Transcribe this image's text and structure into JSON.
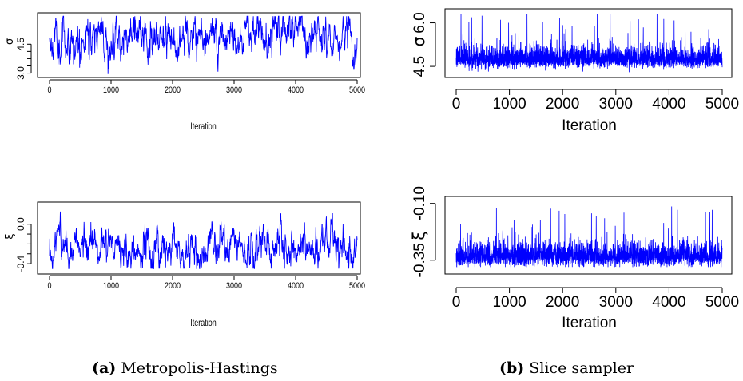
{
  "captions": [
    {
      "label": "(a)",
      "text": "Metropolis-Hastings"
    },
    {
      "label": "(b)",
      "text": "Slice sampler"
    }
  ],
  "series_color": "#0000ff",
  "chart_data": [
    {
      "type": "line",
      "panel": "a-top",
      "xlabel": "Iteration",
      "ylabel": "σ",
      "xlim": [
        0,
        5000
      ],
      "ylim": [
        2.9,
        6.0
      ],
      "xticks": [
        "0",
        "1000",
        "2000",
        "3000",
        "4000",
        "5000"
      ],
      "yticks": [
        "3.0",
        "4.5"
      ],
      "ytick_values": [
        3.0,
        4.5
      ],
      "series": [
        {
          "x_range": [
            0,
            5000
          ],
          "n_points": 5000,
          "center": 4.9,
          "spread": 0.65,
          "min": 2.95,
          "max": 5.95,
          "values_summary": "MCMC trace; values roughly between 3.0 and 5.9"
        }
      ]
    },
    {
      "type": "line",
      "panel": "b-top",
      "xlabel": "Iteration",
      "ylabel": "σ",
      "xlim": [
        0,
        5000
      ],
      "ylim": [
        4.2,
        6.4
      ],
      "xticks": [
        "0",
        "1000",
        "2000",
        "3000",
        "4000",
        "5000"
      ],
      "yticks": [
        "4.5",
        "6.0"
      ],
      "ytick_values": [
        4.5,
        6.0
      ],
      "series": [
        {
          "x_range": [
            0,
            5000
          ],
          "n_points": 5000,
          "center": 4.85,
          "spread": 0.35,
          "min": 4.3,
          "max": 6.3,
          "values_summary": "dense MCMC trace; values roughly between 4.3 and 6.3"
        }
      ]
    },
    {
      "type": "line",
      "panel": "a-bottom",
      "xlabel": "Iteration",
      "ylabel": "ξ",
      "xlim": [
        0,
        5000
      ],
      "ylim": [
        -0.48,
        0.2
      ],
      "xticks": [
        "0",
        "1000",
        "2000",
        "3000",
        "4000",
        "5000"
      ],
      "yticks": [
        "-0.4",
        "0.0"
      ],
      "ytick_values": [
        -0.4,
        0.0
      ],
      "series": [
        {
          "x_range": [
            0,
            5000
          ],
          "n_points": 5000,
          "center": -0.25,
          "spread": 0.12,
          "min": -0.45,
          "max": 0.15,
          "values_summary": "MCMC trace; values roughly between -0.45 and 0.15"
        }
      ]
    },
    {
      "type": "line",
      "panel": "b-bottom",
      "xlabel": "Iteration",
      "ylabel": "ξ",
      "xlim": [
        0,
        5000
      ],
      "ylim": [
        -0.4,
        -0.08
      ],
      "xticks": [
        "0",
        "1000",
        "2000",
        "3000",
        "4000",
        "5000"
      ],
      "yticks": [
        "-0.35",
        "-0.10"
      ],
      "ytick_values": [
        -0.35,
        -0.1
      ],
      "series": [
        {
          "x_range": [
            0,
            5000
          ],
          "n_points": 5000,
          "center": -0.32,
          "spread": 0.05,
          "min": -0.38,
          "max": -0.1,
          "values_summary": "dense MCMC trace; values roughly between -0.38 and -0.10"
        }
      ]
    }
  ]
}
